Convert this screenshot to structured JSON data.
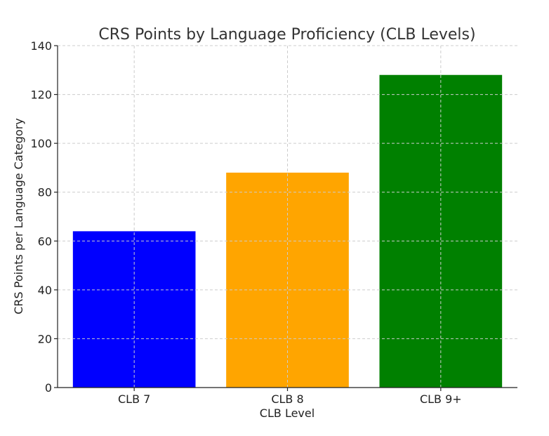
{
  "chart_data": {
    "type": "bar",
    "title": "CRS Points by Language Proficiency (CLB Levels)",
    "xlabel": "CLB Level",
    "ylabel": "CRS Points per Language Category",
    "categories": [
      "CLB 7",
      "CLB 8",
      "CLB 9+"
    ],
    "values": [
      64,
      88,
      128
    ],
    "colors": [
      "#0000ff",
      "#ffa500",
      "#008000"
    ],
    "ylim": [
      0,
      140
    ],
    "yticks": [
      0,
      20,
      40,
      60,
      80,
      100,
      120,
      140
    ],
    "grid": true
  }
}
